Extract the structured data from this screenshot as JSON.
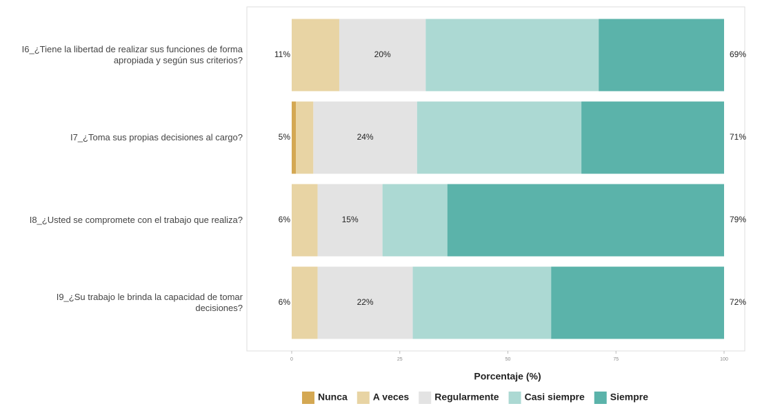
{
  "chart_data": {
    "type": "stacked-bar-horizontal",
    "xlabel": "Porcentaje (%)",
    "categories": [
      "I6_¿Tiene la libertad de realizar sus funciones de forma apropiada y según sus criterios?",
      "I7_¿Toma sus propias decisiones al cargo?",
      "I8_¿Usted se compromete con el trabajo que realiza?",
      "I9_¿Su trabajo le brinda la capacidad de tomar decisiones?"
    ],
    "series": [
      {
        "name": "Nunca",
        "color": "#d4a853",
        "values": [
          0,
          1,
          0,
          0
        ]
      },
      {
        "name": "A veces",
        "color": "#e8d4a4",
        "values": [
          11,
          4,
          6,
          6
        ]
      },
      {
        "name": "Regularmente",
        "color": "#e3e3e3",
        "values": [
          20,
          24,
          15,
          22
        ],
        "value_labels": [
          "20%",
          "24%",
          "15%",
          "22%"
        ]
      },
      {
        "name": "Casi siempre",
        "color": "#acd9d3",
        "values": [
          40,
          38,
          15,
          32
        ]
      },
      {
        "name": "Siempre",
        "color": "#5bb3aa",
        "values": [
          29,
          33,
          64,
          40
        ]
      }
    ],
    "low_totals": {
      "values": [
        11,
        5,
        6,
        6
      ],
      "value_labels": [
        "11%",
        "5%",
        "6%",
        "6%"
      ]
    },
    "high_totals": {
      "values": [
        69,
        71,
        79,
        72
      ],
      "value_labels": [
        "69%",
        "71%",
        "79%",
        "72%"
      ]
    },
    "xlim": [
      0,
      100
    ],
    "xticks": [
      0,
      25,
      50,
      75,
      100
    ],
    "legend": "bottom"
  }
}
